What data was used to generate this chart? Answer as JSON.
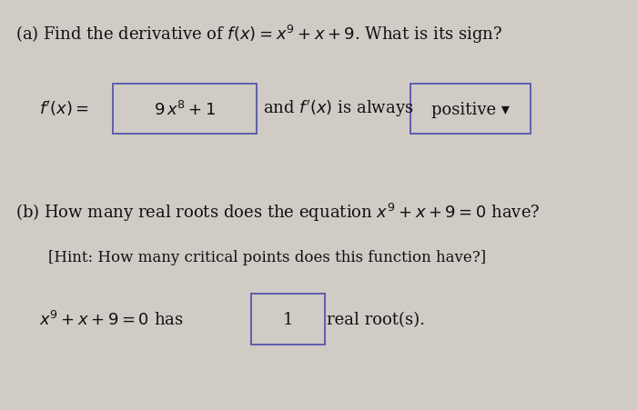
{
  "bg_color": "#d0cbc5",
  "text_color": "#111111",
  "fig_width": 7.0,
  "fig_height": 4.52,
  "title_a": "(a) Find the derivative of $f(x) = x^9 + x + 9$. What is its sign?",
  "box1_content": "$9\\,x^8 + 1$",
  "box2_content": "positive ▾",
  "title_b": "(b) How many real roots does the equation $x^9 + x + 9 = 0$ have?",
  "hint": "[Hint: How many critical points does this function have?]",
  "box3_content": "1",
  "line3_suffix": "real root(s).",
  "box_edge_color": "#5555aa",
  "box_face_color": "#d0cbc5",
  "font_size_main": 13,
  "font_size_hint": 12
}
